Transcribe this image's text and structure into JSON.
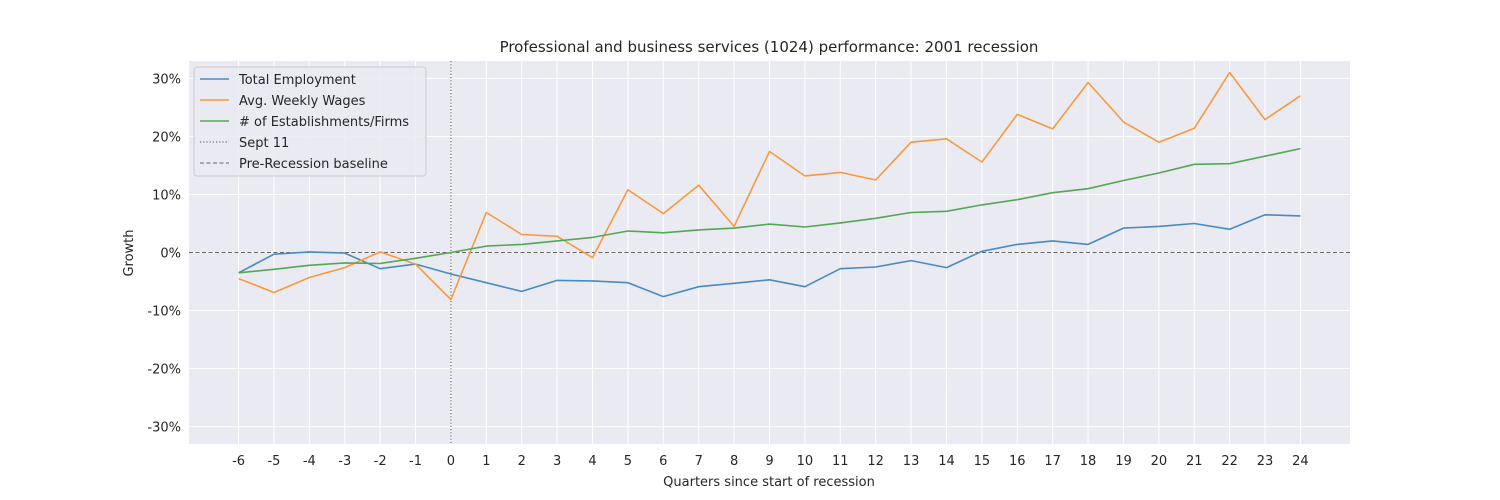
{
  "chart_data": {
    "type": "line",
    "title": "Professional and business services (1024) performance: 2001 recession",
    "xlabel": "Quarters since start of recession",
    "ylabel": "Growth",
    "x": [
      -6,
      -5,
      -4,
      -3,
      -2,
      -1,
      0,
      1,
      2,
      3,
      4,
      5,
      6,
      7,
      8,
      9,
      10,
      11,
      12,
      13,
      14,
      15,
      16,
      17,
      18,
      19,
      20,
      21,
      22,
      23,
      24
    ],
    "x_tick_labels": [
      "-6",
      "-5",
      "-4",
      "-3",
      "-2",
      "-1",
      "0",
      "1",
      "2",
      "3",
      "4",
      "5",
      "6",
      "7",
      "8",
      "9",
      "10",
      "11",
      "12",
      "13",
      "14",
      "15",
      "16",
      "17",
      "18",
      "19",
      "20",
      "21",
      "22",
      "23",
      "24"
    ],
    "xlim": [
      -7.4,
      25.4
    ],
    "ylim": [
      -33,
      33
    ],
    "y_ticks": [
      -30,
      -20,
      -10,
      0,
      10,
      20,
      30
    ],
    "y_tick_labels": [
      "-30%",
      "-20%",
      "-10%",
      "0%",
      "10%",
      "20%",
      "30%"
    ],
    "grid": true,
    "legend_position": "top-left",
    "series": [
      {
        "name": "Total Employment",
        "color": "#4a8bbf",
        "values": [
          -3.5,
          -0.3,
          0.1,
          -0.1,
          -2.8,
          -2.0,
          -3.7,
          -5.2,
          -6.7,
          -4.8,
          -4.9,
          -5.2,
          -7.6,
          -5.9,
          -5.3,
          -4.7,
          -5.9,
          -2.8,
          -2.5,
          -1.4,
          -2.6,
          0.2,
          1.4,
          2.0,
          1.4,
          4.2,
          4.5,
          5.0,
          4.0,
          6.5,
          6.3
        ]
      },
      {
        "name": "Avg. Weekly Wages",
        "color": "#f89a3d",
        "values": [
          -4.5,
          -6.9,
          -4.3,
          -2.6,
          0.1,
          -2.0,
          -8.1,
          6.9,
          3.1,
          2.8,
          -0.9,
          10.8,
          6.7,
          11.6,
          4.5,
          17.4,
          13.2,
          13.8,
          12.5,
          19.0,
          19.6,
          15.6,
          23.8,
          21.3,
          29.3,
          22.5,
          19.0,
          21.4,
          31.0,
          22.9,
          27.0
        ]
      },
      {
        "name": "# of Establishments/Firms",
        "color": "#55a755",
        "values": [
          -3.5,
          -2.9,
          -2.2,
          -1.8,
          -1.9,
          -1.0,
          0.0,
          1.1,
          1.4,
          2.0,
          2.6,
          3.7,
          3.4,
          3.9,
          4.2,
          4.9,
          4.4,
          5.1,
          5.9,
          6.9,
          7.1,
          8.2,
          9.1,
          10.3,
          11.0,
          12.4,
          13.7,
          15.2,
          15.3,
          16.6,
          17.9
        ]
      }
    ],
    "reference_lines": [
      {
        "name": "Sept 11",
        "orientation": "vertical",
        "value": 0,
        "style": "dotted",
        "color": "#555555"
      },
      {
        "name": "Pre-Recession baseline",
        "orientation": "horizontal",
        "value": 0,
        "style": "dashed",
        "color": "#666666"
      }
    ],
    "background_color": "#eaeaf2",
    "grid_color": "#ffffff"
  }
}
